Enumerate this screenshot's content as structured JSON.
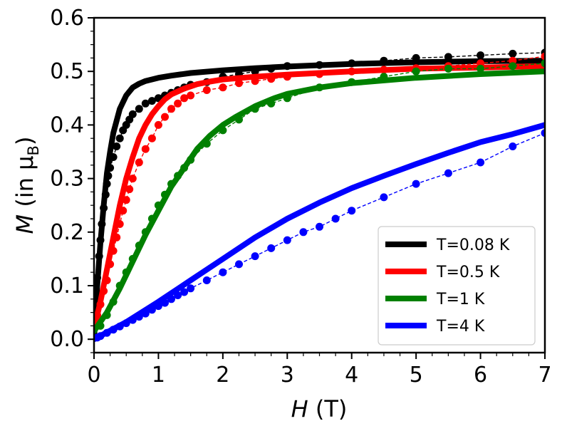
{
  "chart_data": {
    "type": "line",
    "title": "",
    "xlabel": {
      "italic": "H",
      "rest": " (T)"
    },
    "ylabel": {
      "italic": "M",
      "pre": " (in ",
      "mu": "μ",
      "sub": "B",
      "post": ")"
    },
    "xlim": [
      0,
      7
    ],
    "ylim": [
      -0.025,
      0.6
    ],
    "xticks": [
      0,
      1,
      2,
      3,
      4,
      5,
      6,
      7
    ],
    "yticks": [
      0.0,
      0.1,
      0.2,
      0.3,
      0.4,
      0.5,
      0.6
    ],
    "ytick_labels": [
      "0.0",
      "0.1",
      "0.2",
      "0.3",
      "0.4",
      "0.5",
      "0.6"
    ],
    "grid": false,
    "legend_position": "bottom-right",
    "series": [
      {
        "name": "T=0.08 K",
        "color": "#000000",
        "fit_x": [
          0,
          0.05,
          0.1,
          0.15,
          0.2,
          0.25,
          0.3,
          0.4,
          0.5,
          0.6,
          0.7,
          0.8,
          1.0,
          1.2,
          1.5,
          2.0,
          2.5,
          3.0,
          4.0,
          5.0,
          6.0,
          7.0
        ],
        "fit_y": [
          0.0,
          0.1,
          0.18,
          0.25,
          0.31,
          0.35,
          0.385,
          0.43,
          0.455,
          0.47,
          0.477,
          0.482,
          0.488,
          0.492,
          0.497,
          0.502,
          0.506,
          0.509,
          0.514,
          0.517,
          0.519,
          0.52
        ],
        "points_x": [
          0.02,
          0.05,
          0.08,
          0.1,
          0.12,
          0.15,
          0.18,
          0.2,
          0.22,
          0.25,
          0.3,
          0.35,
          0.4,
          0.45,
          0.5,
          0.55,
          0.6,
          0.7,
          0.8,
          0.9,
          1.0,
          1.1,
          1.2,
          1.3,
          1.4,
          1.5,
          1.75,
          2.0,
          2.25,
          2.5,
          2.75,
          3.0,
          3.5,
          4.0,
          4.5,
          5.0,
          5.5,
          6.0,
          6.5,
          7.0
        ],
        "points_y": [
          0.075,
          0.115,
          0.155,
          0.185,
          0.215,
          0.245,
          0.27,
          0.29,
          0.305,
          0.32,
          0.34,
          0.36,
          0.375,
          0.39,
          0.4,
          0.41,
          0.42,
          0.43,
          0.44,
          0.445,
          0.45,
          0.455,
          0.46,
          0.465,
          0.47,
          0.475,
          0.48,
          0.49,
          0.495,
          0.5,
          0.505,
          0.51,
          0.512,
          0.515,
          0.52,
          0.525,
          0.527,
          0.53,
          0.533,
          0.535
        ]
      },
      {
        "name": "T=0.5 K",
        "color": "#ff0000",
        "fit_x": [
          0,
          0.1,
          0.2,
          0.3,
          0.4,
          0.5,
          0.6,
          0.7,
          0.8,
          0.9,
          1.0,
          1.1,
          1.2,
          1.4,
          1.6,
          1.8,
          2.0,
          2.5,
          3.0,
          4.0,
          5.0,
          6.0,
          7.0
        ],
        "fit_y": [
          0.02,
          0.07,
          0.13,
          0.19,
          0.25,
          0.3,
          0.34,
          0.375,
          0.4,
          0.42,
          0.435,
          0.448,
          0.457,
          0.468,
          0.476,
          0.481,
          0.485,
          0.49,
          0.494,
          0.5,
          0.505,
          0.507,
          0.51
        ],
        "points_x": [
          0.05,
          0.1,
          0.15,
          0.2,
          0.25,
          0.3,
          0.35,
          0.4,
          0.45,
          0.5,
          0.55,
          0.6,
          0.7,
          0.8,
          0.9,
          1.0,
          1.1,
          1.2,
          1.3,
          1.4,
          1.5,
          1.75,
          2.0,
          2.25,
          2.5,
          2.75,
          3.0,
          3.5,
          4.0,
          4.5,
          5.0,
          5.5,
          6.0,
          6.5,
          7.0
        ],
        "points_y": [
          0.045,
          0.065,
          0.09,
          0.11,
          0.14,
          0.165,
          0.19,
          0.215,
          0.24,
          0.26,
          0.28,
          0.3,
          0.33,
          0.355,
          0.375,
          0.4,
          0.415,
          0.43,
          0.44,
          0.45,
          0.455,
          0.465,
          0.47,
          0.478,
          0.482,
          0.486,
          0.49,
          0.495,
          0.5,
          0.503,
          0.506,
          0.51,
          0.515,
          0.52,
          0.528
        ]
      },
      {
        "name": "T=1 K",
        "color": "#008000",
        "fit_x": [
          0,
          0.2,
          0.4,
          0.6,
          0.8,
          1.0,
          1.2,
          1.4,
          1.6,
          1.8,
          2.0,
          2.2,
          2.5,
          2.8,
          3.0,
          3.5,
          4.0,
          5.0,
          6.0,
          7.0
        ],
        "fit_y": [
          0.015,
          0.05,
          0.095,
          0.145,
          0.195,
          0.24,
          0.285,
          0.32,
          0.355,
          0.38,
          0.4,
          0.415,
          0.435,
          0.45,
          0.458,
          0.47,
          0.478,
          0.488,
          0.495,
          0.5
        ],
        "points_x": [
          0.1,
          0.2,
          0.3,
          0.4,
          0.5,
          0.6,
          0.7,
          0.8,
          0.9,
          1.0,
          1.1,
          1.2,
          1.3,
          1.4,
          1.5,
          1.75,
          2.0,
          2.25,
          2.5,
          2.75,
          3.0,
          3.5,
          4.0,
          4.5,
          5.0,
          5.5,
          6.0,
          6.5,
          7.0
        ],
        "points_y": [
          0.025,
          0.045,
          0.07,
          0.1,
          0.125,
          0.15,
          0.175,
          0.2,
          0.225,
          0.25,
          0.27,
          0.29,
          0.305,
          0.32,
          0.335,
          0.365,
          0.39,
          0.41,
          0.43,
          0.44,
          0.45,
          0.47,
          0.48,
          0.49,
          0.5,
          0.505,
          0.505,
          0.51,
          0.515
        ]
      },
      {
        "name": "T=4 K",
        "color": "#0000ff",
        "fit_x": [
          0,
          0.5,
          1.0,
          1.5,
          2.0,
          2.5,
          3.0,
          3.5,
          4.0,
          4.5,
          5.0,
          5.5,
          6.0,
          6.5,
          7.0
        ],
        "fit_y": [
          0.0,
          0.032,
          0.07,
          0.11,
          0.15,
          0.19,
          0.225,
          0.255,
          0.282,
          0.305,
          0.327,
          0.348,
          0.368,
          0.383,
          0.4
        ],
        "points_x": [
          0.05,
          0.1,
          0.2,
          0.3,
          0.4,
          0.5,
          0.6,
          0.7,
          0.8,
          0.9,
          1.0,
          1.1,
          1.2,
          1.3,
          1.4,
          1.5,
          1.75,
          2.0,
          2.25,
          2.5,
          2.75,
          3.0,
          3.25,
          3.5,
          3.75,
          4.0,
          4.5,
          5.0,
          5.5,
          6.0,
          6.5,
          7.0
        ],
        "points_y": [
          0.003,
          0.006,
          0.012,
          0.018,
          0.024,
          0.03,
          0.036,
          0.042,
          0.048,
          0.055,
          0.062,
          0.068,
          0.075,
          0.082,
          0.088,
          0.095,
          0.11,
          0.125,
          0.14,
          0.155,
          0.17,
          0.185,
          0.2,
          0.21,
          0.225,
          0.24,
          0.265,
          0.29,
          0.31,
          0.33,
          0.36,
          0.385
        ]
      }
    ]
  }
}
